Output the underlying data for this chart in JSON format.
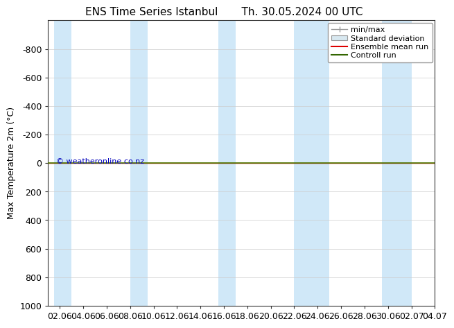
{
  "title_left": "ENS Time Series Istanbul",
  "title_right": "Th. 30.05.2024 00 UTC",
  "ylabel": "Max Temperature 2m (°C)",
  "ylim": [
    -1000,
    1000
  ],
  "yticks": [
    -800,
    -600,
    -400,
    -200,
    0,
    200,
    400,
    600,
    800,
    1000
  ],
  "xlim": [
    0,
    33
  ],
  "xtick_labels": [
    "02.06",
    "04.06",
    "06.06",
    "08.06",
    "10.06",
    "12.06",
    "14.06",
    "16.06",
    "18.06",
    "20.06",
    "22.06",
    "24.06",
    "26.06",
    "28.06",
    "30.06",
    "02.07",
    "04.07"
  ],
  "xtick_positions": [
    1,
    3,
    5,
    7,
    9,
    11,
    13,
    15,
    17,
    19,
    21,
    23,
    25,
    27,
    29,
    31,
    33
  ],
  "shaded_columns": [
    [
      0.5,
      2.0
    ],
    [
      7.0,
      8.5
    ],
    [
      14.5,
      16.0
    ],
    [
      21.0,
      24.0
    ],
    [
      28.5,
      31.0
    ]
  ],
  "shaded_color": "#d0e8f8",
  "green_line_y": 0,
  "green_line_color": "#4a7a00",
  "red_line_color": "#cc0000",
  "background_color": "#ffffff",
  "plot_bg_color": "#ffffff",
  "watermark": "© weatheronline.co.nz",
  "watermark_color": "#0000bb",
  "title_fontsize": 11,
  "axis_fontsize": 9,
  "legend_entries": [
    "min/max",
    "Standard deviation",
    "Ensemble mean run",
    "Controll run"
  ],
  "legend_colors_line": [
    "#999999",
    "#bbbbbb",
    "#dd0000",
    "#336600"
  ],
  "legend_std_face": "#d8e8f0",
  "legend_std_edge": "#999999"
}
